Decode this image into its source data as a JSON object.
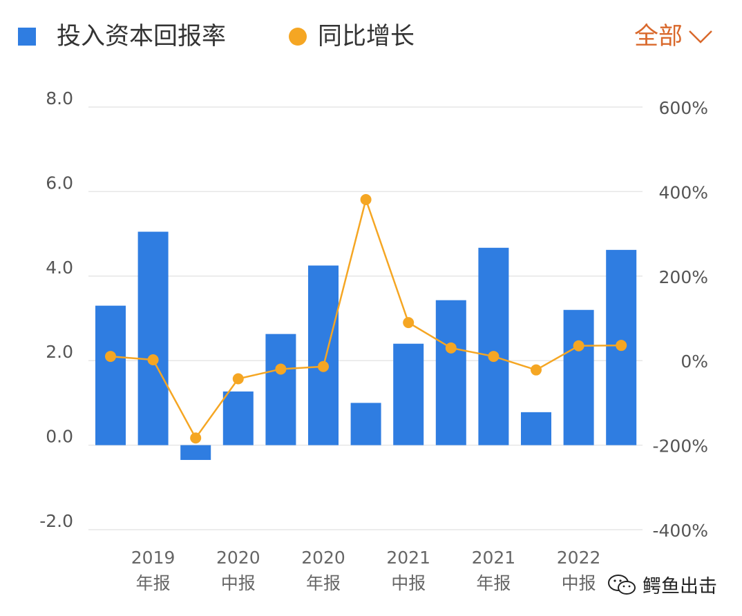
{
  "legend": {
    "bar_label": "投入资本回报率",
    "line_label": "同比增长"
  },
  "range_selector": {
    "label": "全部"
  },
  "watermark": {
    "text": "鳄鱼出击"
  },
  "colors": {
    "bar": "#2f7de1",
    "line": "#f5a623",
    "accent": "#d9682b",
    "grid": "#e6e6e6"
  },
  "chart_data": {
    "type": "bar",
    "categories": [
      "",
      "2019年报",
      "",
      "2020中报",
      "",
      "2020年报",
      "",
      "2021中报",
      "",
      "2021年报",
      "",
      "2022中报",
      ""
    ],
    "x_tick_labels": [
      {
        "year": "2019",
        "period": "年报",
        "index": 1
      },
      {
        "year": "2020",
        "period": "中报",
        "index": 3
      },
      {
        "year": "2020",
        "period": "年报",
        "index": 5
      },
      {
        "year": "2021",
        "period": "中报",
        "index": 7
      },
      {
        "year": "2021",
        "period": "年报",
        "index": 9
      },
      {
        "year": "2022",
        "period": "中报",
        "index": 11
      }
    ],
    "series": [
      {
        "name": "投入资本回报率",
        "type": "bar",
        "axis": "left",
        "values": [
          3.3,
          5.05,
          -0.35,
          1.27,
          2.63,
          4.25,
          1.0,
          2.4,
          3.43,
          4.67,
          0.78,
          3.2,
          4.62
        ]
      },
      {
        "name": "同比增长",
        "type": "line",
        "axis": "right",
        "values": [
          10,
          2,
          -183,
          -43,
          -20,
          -14,
          381,
          90,
          30,
          10,
          -22,
          35,
          36
        ]
      }
    ],
    "y_left": {
      "ticks": [
        "8.0",
        "6.0",
        "4.0",
        "2.0",
        "0.0",
        "-2.0"
      ],
      "range": [
        -2.0,
        8.0
      ]
    },
    "y_right": {
      "ticks": [
        "600%",
        "400%",
        "200%",
        "0%",
        "-200%",
        "-400%"
      ],
      "range": [
        -400,
        600
      ]
    },
    "grid": true,
    "legend_position": "top-left"
  }
}
